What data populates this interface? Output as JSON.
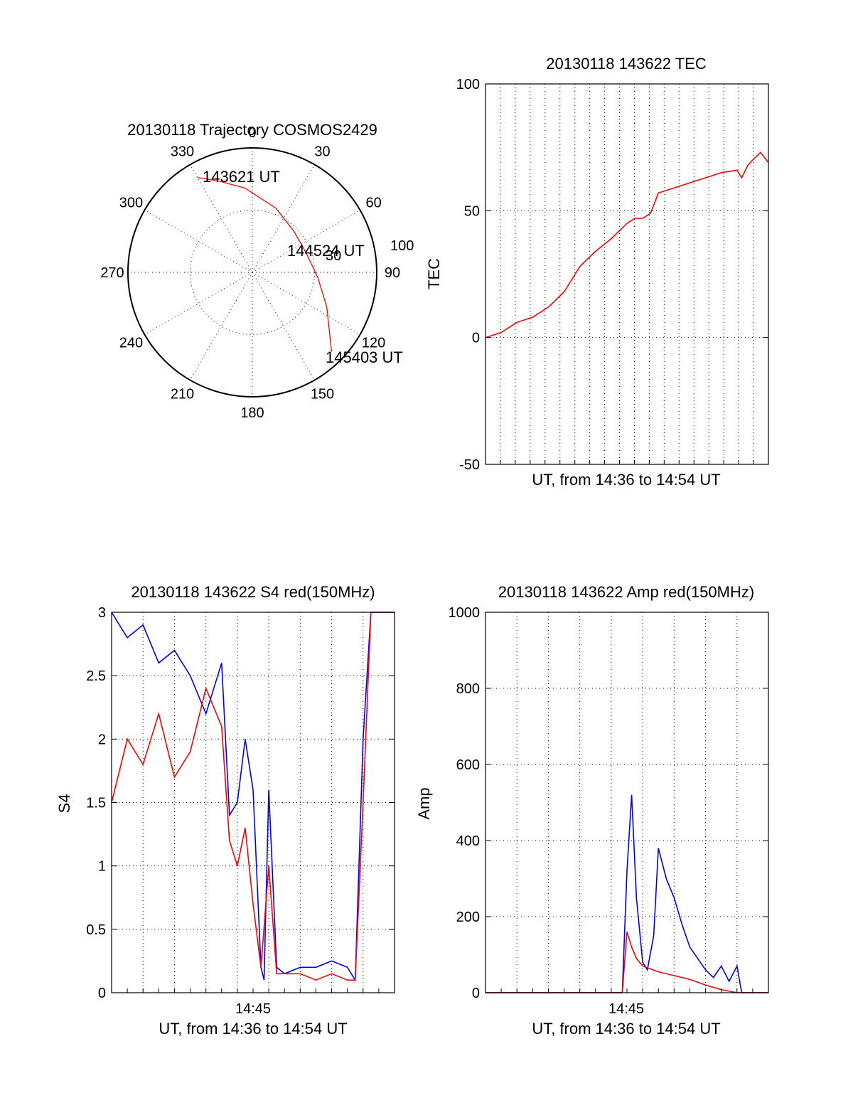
{
  "chart_data": [
    {
      "type": "polar",
      "title": "20130118 Trajectory COSMOS2429",
      "azimuth_labels": [
        "0",
        "30",
        "60",
        "90",
        "120",
        "150",
        "180",
        "210",
        "240",
        "270",
        "300",
        "330"
      ],
      "radial_labels": [
        "30",
        "100"
      ],
      "series": [
        {
          "color": "#ff0000",
          "points": [
            {
              "az": 330,
              "r": 0.88
            },
            {
              "az": 340,
              "r": 0.78
            },
            {
              "az": 355,
              "r": 0.68
            },
            {
              "az": 20,
              "r": 0.55
            },
            {
              "az": 45,
              "r": 0.47
            },
            {
              "az": 70,
              "r": 0.46
            },
            {
              "az": 95,
              "r": 0.53
            },
            {
              "az": 115,
              "r": 0.66
            },
            {
              "az": 135,
              "r": 0.9
            }
          ]
        }
      ],
      "annotations": [
        "143621 UT",
        "144524 UT",
        "145403 UT"
      ]
    },
    {
      "type": "line",
      "title": "20130118 143622 TEC",
      "xlabel": "UT, from 14:36 to 14:54 UT",
      "ylabel": "TEC",
      "ylim": [
        -50,
        100
      ],
      "yticks": [
        "100",
        "50",
        "0",
        "-50"
      ],
      "xlim_minutes": [
        0,
        18
      ],
      "series": [
        {
          "color": "#ff0000",
          "x": [
            0,
            1,
            2,
            3,
            4,
            5,
            6,
            7,
            8,
            9,
            9.5,
            10,
            10.5,
            11,
            12,
            13,
            14,
            15,
            16,
            16.3,
            16.7,
            17,
            17.5,
            18
          ],
          "y": [
            0,
            2,
            6,
            8,
            12,
            18,
            28,
            34,
            39,
            45,
            47,
            47,
            49,
            57,
            59,
            61,
            63,
            65,
            66,
            63,
            68,
            70,
            73,
            69
          ]
        }
      ]
    },
    {
      "type": "line",
      "title": "20130118 143622 S4 red(150MHz)",
      "xlabel": "UT, from 14:36 to 14:54 UT",
      "ylabel": "S4",
      "ylim": [
        0,
        3
      ],
      "yticks": [
        "3",
        "2.5",
        "2",
        "1.5",
        "1",
        "0.5",
        "0"
      ],
      "xtick_labels": [
        "14:45"
      ],
      "series": [
        {
          "color": "#0000ff",
          "x": [
            0,
            1,
            2,
            3,
            4,
            5,
            6,
            7,
            7.5,
            8,
            8.5,
            9,
            9.5,
            9.7,
            10,
            10.5,
            11,
            12,
            13,
            14,
            15,
            15.5,
            16,
            16.5,
            17,
            17.5,
            18
          ],
          "y": [
            3,
            2.8,
            2.9,
            2.6,
            2.7,
            2.5,
            2.2,
            2.6,
            1.4,
            1.5,
            2.0,
            1.6,
            0.2,
            0.1,
            1.6,
            0.2,
            0.15,
            0.2,
            0.2,
            0.25,
            0.2,
            0.1,
            2.0,
            3,
            3,
            3,
            3
          ]
        },
        {
          "color": "#ff0000",
          "x": [
            0,
            1,
            2,
            3,
            4,
            5,
            6,
            7,
            7.5,
            8,
            8.5,
            9,
            9.5,
            10,
            10.5,
            11,
            12,
            13,
            14,
            15,
            15.5,
            16,
            16.5,
            17,
            18
          ],
          "y": [
            1.5,
            2.0,
            1.8,
            2.2,
            1.7,
            1.9,
            2.4,
            2.1,
            1.2,
            1.0,
            1.3,
            0.7,
            0.2,
            1.0,
            0.15,
            0.15,
            0.15,
            0.1,
            0.15,
            0.1,
            0.1,
            1.5,
            3,
            3,
            3
          ]
        }
      ]
    },
    {
      "type": "line",
      "title": "20130118 143622 Amp red(150MHz)",
      "xlabel": "UT, from 14:36 to 14:54 UT",
      "ylabel": "Amp",
      "ylim": [
        0,
        1000
      ],
      "yticks": [
        "1000",
        "800",
        "600",
        "400",
        "200",
        "0"
      ],
      "xtick_labels": [
        "14:45"
      ],
      "series": [
        {
          "color": "#0000ff",
          "x": [
            0,
            4,
            8,
            8.7,
            9.0,
            9.3,
            9.6,
            10.0,
            10.3,
            10.7,
            11.0,
            11.5,
            12,
            12.5,
            13,
            13.5,
            14,
            14.5,
            15,
            15.5,
            16,
            16.3,
            18
          ],
          "y": [
            0,
            0,
            0,
            0,
            320,
            520,
            250,
            80,
            60,
            150,
            380,
            300,
            250,
            180,
            120,
            90,
            60,
            40,
            70,
            30,
            70,
            0,
            0
          ]
        },
        {
          "color": "#ff0000",
          "x": [
            0,
            4,
            8,
            8.7,
            9.0,
            9.3,
            9.6,
            10,
            11,
            12,
            13,
            14,
            15,
            16,
            18
          ],
          "y": [
            0,
            0,
            0,
            0,
            160,
            120,
            90,
            70,
            55,
            45,
            35,
            20,
            8,
            0,
            0
          ]
        }
      ]
    }
  ]
}
